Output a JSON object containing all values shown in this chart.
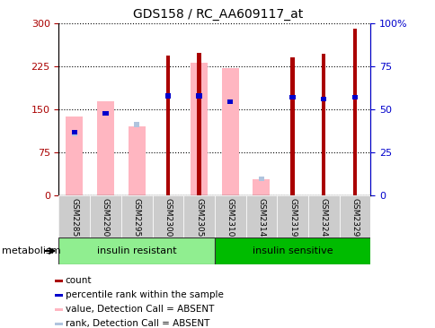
{
  "title": "GDS158 / RC_AA609117_at",
  "samples": [
    "GSM2285",
    "GSM2290",
    "GSM2295",
    "GSM2300",
    "GSM2305",
    "GSM2310",
    "GSM2314",
    "GSM2319",
    "GSM2324",
    "GSM2329"
  ],
  "count_values": [
    0,
    0,
    0,
    243,
    248,
    0,
    0,
    240,
    246,
    290
  ],
  "rank_values_left": [
    110,
    143,
    0,
    173,
    173,
    163,
    0,
    170,
    168,
    170
  ],
  "absent_value_values": [
    137,
    163,
    120,
    0,
    230,
    222,
    28,
    0,
    0,
    0
  ],
  "absent_rank_values_left": [
    107,
    0,
    123,
    0,
    0,
    0,
    28,
    0,
    0,
    0
  ],
  "groups": [
    {
      "label": "insulin resistant",
      "start": 0,
      "end": 5,
      "color": "#90EE90"
    },
    {
      "label": "insulin sensitive",
      "start": 5,
      "end": 10,
      "color": "#00BB00"
    }
  ],
  "ylim_left": [
    0,
    300
  ],
  "ylim_right": [
    0,
    100
  ],
  "yticks_left": [
    0,
    75,
    150,
    225,
    300
  ],
  "yticks_right": [
    0,
    25,
    50,
    75,
    100
  ],
  "yticklabels_right": [
    "0",
    "25",
    "50",
    "75",
    "100%"
  ],
  "color_count": "#AA0000",
  "color_rank": "#0000CC",
  "color_absent_value": "#FFB6C1",
  "color_absent_rank": "#B0C4DE",
  "legend_items": [
    {
      "color": "#AA0000",
      "label": "count"
    },
    {
      "color": "#0000CC",
      "label": "percentile rank within the sample"
    },
    {
      "color": "#FFB6C1",
      "label": "value, Detection Call = ABSENT"
    },
    {
      "color": "#B0C4DE",
      "label": "rank, Detection Call = ABSENT"
    }
  ],
  "metabolism_label": "metabolism"
}
